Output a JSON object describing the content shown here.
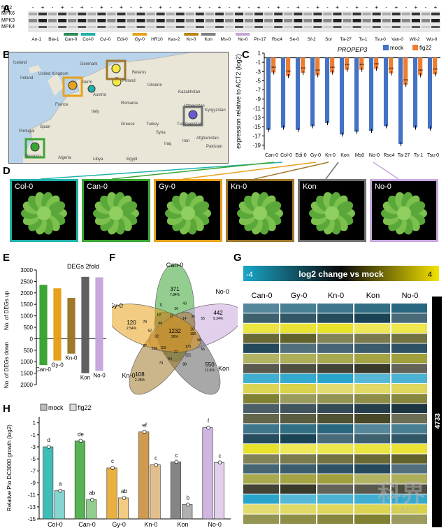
{
  "panels": {
    "a": "A",
    "b": "B",
    "c": "C",
    "d": "D",
    "e": "E",
    "f": "F",
    "g": "G",
    "h": "H"
  },
  "panel_a": {
    "row_labels": [
      "flg22",
      "MPK6",
      "MPK3",
      "MPK4"
    ],
    "signs": [
      "-",
      "+",
      "-",
      "+",
      "-",
      "+",
      "-",
      "+",
      "-",
      "+",
      "-",
      "+",
      "-",
      "+",
      "-",
      "+",
      "-",
      "+",
      "-",
      "+",
      "-",
      "+",
      "-",
      "+",
      "-",
      "+",
      "-",
      "+",
      "-",
      "+",
      "-",
      "+",
      "-",
      "+",
      "-",
      "+",
      "-",
      "+",
      "-",
      "+",
      "-",
      "+"
    ],
    "accessions": [
      "An-1",
      "Bla-1",
      "Can-0",
      "Col-0",
      "Cvi-0",
      "Edi-0",
      "Gy-0",
      "HR10",
      "Kas-2",
      "Kn-0",
      "Kon",
      "Ms-0",
      "No-0",
      "Pn-17",
      "Rsc4",
      "Se-0",
      "Sf-2",
      "Sor",
      "Ta-27",
      "Ts-1",
      "Tsu-0",
      "Van-0",
      "Wil-2",
      "Wu-0"
    ],
    "highlight_colors": {
      "Can-0": "#2e8b57",
      "Col-0": "#20b2aa",
      "Gy-0": "#e6a21c",
      "Kn-0": "#b8860b",
      "Kon": "#808080",
      "No-0": "#c8a8dc"
    }
  },
  "panel_b": {
    "labels": [
      "Iceland",
      "United Kingdom",
      "Denmark",
      "Ireland",
      "Germ",
      "Poland",
      "Belarus",
      "Ukraine",
      "Kazakhstan",
      "France",
      "Italy",
      "Romania",
      "Spain",
      "Portugal",
      "Greece",
      "Turkey",
      "Turkmenistan",
      "Uzbekistan",
      "Morocco",
      "Algeria",
      "Libya",
      "Egypt",
      "Syria",
      "Iraq",
      "Iran",
      "Afghanistan",
      "Pakistan",
      "Kyrgyzstan",
      "Austria"
    ]
  },
  "chart_data": [
    {
      "type": "bar",
      "panel": "C",
      "title": "PROPEP3",
      "ylabel": "expression relative to ACT2 (log2)",
      "ylim": [
        -20,
        1
      ],
      "yticks": [
        1,
        -1,
        -3,
        -5,
        -7,
        -9,
        -11,
        -13,
        -15,
        -17,
        -19
      ],
      "categories": [
        "Can-0",
        "Col-0",
        "Edi-0",
        "Gy-0",
        "Kn-0",
        "Kon",
        "Ms0",
        "No-0",
        "Rsc4",
        "Ta-27",
        "Ts-1",
        "Tsu-0"
      ],
      "series": [
        {
          "name": "mock",
          "color": "#4472c4",
          "values": [
            -15.7,
            -15.2,
            -15.7,
            -14.9,
            -14.2,
            -16.7,
            -16.1,
            -15.9,
            -14.9,
            -18.8,
            -15.2,
            -15.4
          ]
        },
        {
          "name": "flg22",
          "color": "#ed7d31",
          "values": [
            -3.2,
            -4.0,
            -3.3,
            -3.8,
            -3.2,
            -2.6,
            -2.6,
            -2.4,
            -3.4,
            -5.9,
            -3.8,
            -3.6
          ]
        }
      ],
      "stars": "***"
    },
    {
      "type": "bar",
      "panel": "E",
      "title": "DEGs 2fold",
      "ylabel_up": "No. of DEGs up",
      "ylabel_down": "No. of DEGs down",
      "ylim": [
        -2000,
        3000
      ],
      "yticks_up": [
        500,
        1000,
        1500,
        2000,
        2500,
        3000
      ],
      "yticks_down": [
        0,
        500,
        1000,
        1500,
        2000
      ],
      "categories": [
        "Can-0",
        "Gy-0",
        "Kn-0",
        "Kon",
        "No-0"
      ],
      "colors": [
        "#3aa635",
        "#e6a21c",
        "#a0782c",
        "#606060",
        "#c8a8dc"
      ],
      "up": [
        2350,
        2200,
        1780,
        2700,
        2680
      ],
      "down": [
        1150,
        950,
        650,
        1500,
        1400
      ]
    },
    {
      "type": "bar",
      "panel": "H",
      "ylabel": "Relative Pto DC3000 growth (log2)",
      "ylim": [
        -15,
        2
      ],
      "yticks": [
        1,
        -1,
        -3,
        -5,
        -7,
        -9,
        -11,
        -13,
        -15
      ],
      "legend": [
        "mock",
        "flg22"
      ],
      "categories": [
        "Col-0",
        "Can-0",
        "Gy-0",
        "Kn-0",
        "Kon",
        "No-0"
      ],
      "colors": [
        "#20b2aa",
        "#3aa635",
        "#e6a21c",
        "#c88a30",
        "#707070",
        "#c8a8dc"
      ],
      "mock": [
        -3.0,
        -2.0,
        -6.5,
        -0.5,
        -5.5,
        0.2
      ],
      "flg22": [
        -10.3,
        -11.8,
        -11.5,
        -6.0,
        -12.6,
        -5.6
      ],
      "letters_mock": [
        "d",
        "de",
        "c",
        "ef",
        "c",
        "f"
      ],
      "letters_flg22": [
        "a",
        "ab",
        "ab",
        "c",
        "b",
        "c"
      ]
    }
  ],
  "panel_d": {
    "labels": [
      "Col-0",
      "Can-0",
      "Gy-0",
      "Kn-0",
      "Kon",
      "No-0"
    ],
    "colors": [
      "#20b2aa",
      "#3aa635",
      "#e6a21c",
      "#a0782c",
      "#707070",
      "#c8a8dc"
    ]
  },
  "panel_f": {
    "sets": [
      "Can-0",
      "No-0",
      "Kon",
      "Kn-0",
      "Gy-0"
    ],
    "numbers": [
      {
        "v": "371",
        "p": "7.84%"
      },
      {
        "v": "442",
        "p": "9.34%"
      },
      {
        "v": "550",
        "p": "11.6%"
      },
      {
        "v": "108",
        "p": "2.28%"
      },
      {
        "v": "120",
        "p": "2.54%"
      },
      {
        "v": "1232",
        "p": "26%"
      }
    ],
    "small": [
      "106",
      "98",
      "55",
      "170",
      "321",
      "88",
      "27",
      "54",
      "74",
      "163",
      "239",
      "87",
      "82",
      "52",
      "78",
      "44",
      "19",
      "11",
      "13",
      "56",
      "43",
      "14",
      "20",
      "55",
      "26"
    ]
  },
  "panel_g": {
    "scale_min": "-4",
    "scale_max": "4",
    "scale_title": "log2 change vs mock",
    "columns": [
      "Can-0",
      "Gy-0",
      "Kn-0",
      "Kon",
      "No-0"
    ],
    "count": "4733"
  },
  "watermark": {
    "cn": "科界",
    "en": "SciMall"
  }
}
